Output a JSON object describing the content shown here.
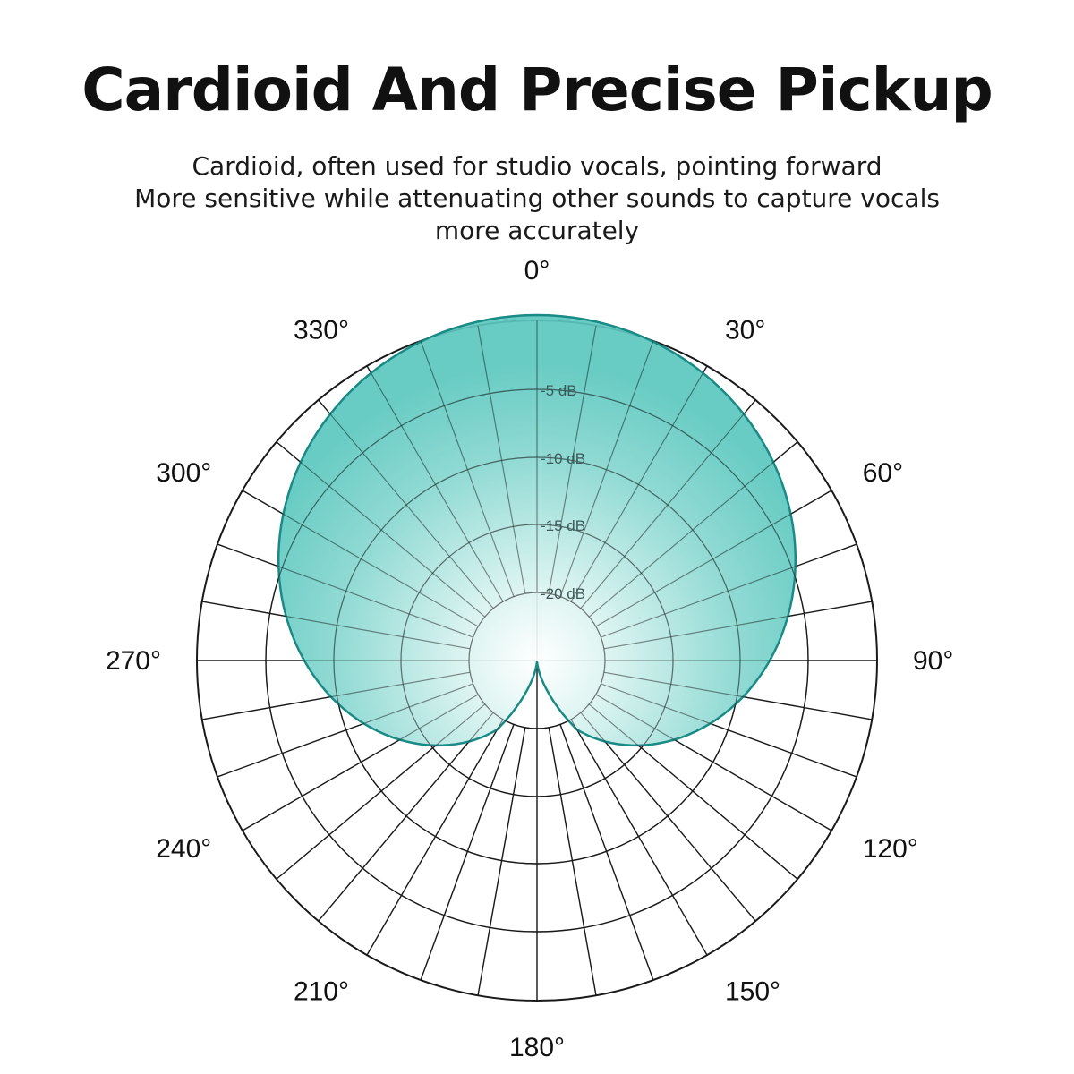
{
  "header": {
    "title": "Cardioid And Precise Pickup",
    "subtitle_lines": [
      "Cardioid, often used for studio vocals, pointing forward",
      "More sensitive while attenuating other sounds to capture vocals",
      "more accurately"
    ]
  },
  "chart_data": {
    "type": "polar",
    "pattern": "cardioid",
    "angle_labels": [
      "0°",
      "30°",
      "60°",
      "90°",
      "120°",
      "150°",
      "180°",
      "210°",
      "240°",
      "270°",
      "300°",
      "330°"
    ],
    "angle_label_degrees": [
      0,
      30,
      60,
      90,
      120,
      150,
      180,
      210,
      240,
      270,
      300,
      330
    ],
    "ring_labels": [
      "-5 dB",
      "-10 dB",
      "-15 dB",
      "-20 dB"
    ],
    "ring_db_values": [
      -5,
      -10,
      -15,
      -20
    ],
    "spoke_step_degrees": 10,
    "fill_color": "#5cc8bf",
    "edge_color": "#1a8a86",
    "grid_color": "#1a1a1a"
  }
}
